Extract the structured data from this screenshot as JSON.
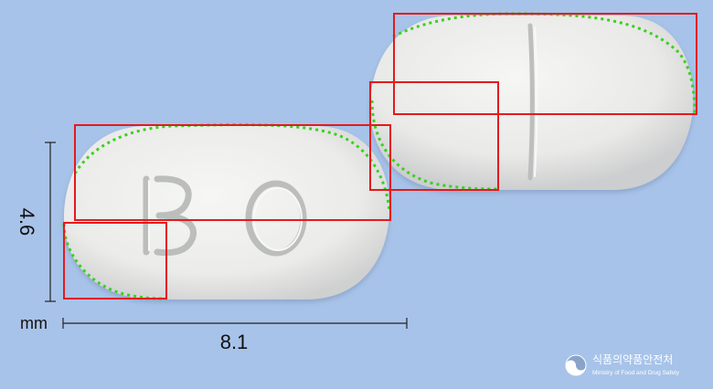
{
  "dimensions": {
    "height_value": "4.6",
    "width_value": "8.1",
    "unit": "mm"
  },
  "tablets": {
    "front_imprint": "BO"
  },
  "logo": {
    "korean": "식품의약품안전처",
    "english": "Ministry of Food and Drug Safety"
  },
  "colors": {
    "background": "#a8c3e9",
    "annotation_box": "#e41a1c",
    "annotation_contour": "#39d11f",
    "tablet": "#ececea"
  }
}
